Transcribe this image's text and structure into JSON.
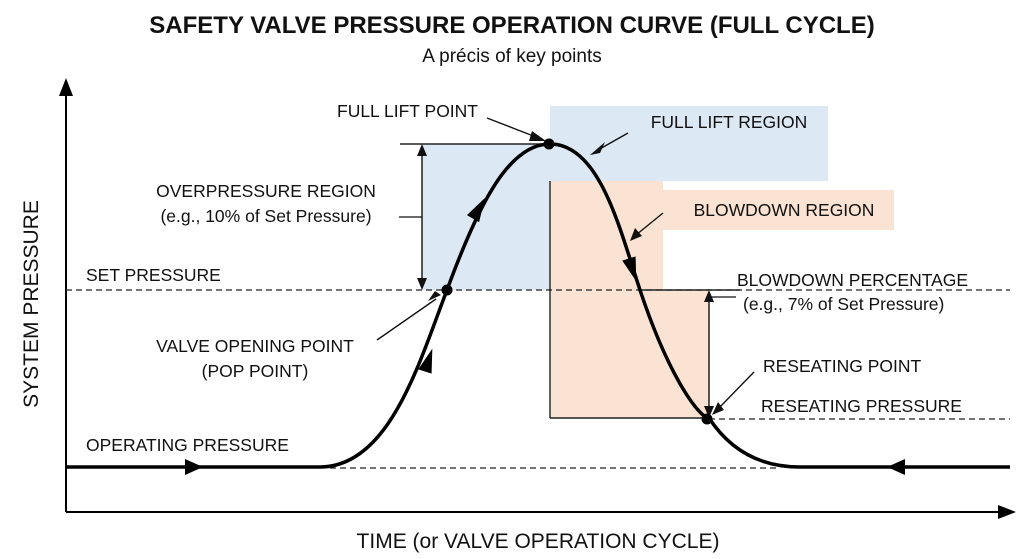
{
  "title": "SAFETY VALVE PRESSURE OPERATION CURVE (FULL CYCLE)",
  "subtitle": "A précis of key points",
  "axes": {
    "x_label": "TIME (or VALVE OPERATION CYCLE)",
    "y_label": "SYSTEM PRESSURE"
  },
  "labels": {
    "full_lift_point": "FULL LIFT POINT",
    "full_lift_region": "FULL LIFT REGION",
    "overpressure_region_1": "OVERPRESSURE REGION",
    "overpressure_region_2": "(e.g., 10% of Set Pressure)",
    "blowdown_region": "BLOWDOWN REGION",
    "set_pressure": "SET PRESSURE",
    "blowdown_percentage_1": "BLOWDOWN PERCENTAGE",
    "blowdown_percentage_2": "(e.g., 7% of Set Pressure)",
    "valve_opening_point_1": "VALVE OPENING POINT",
    "valve_opening_point_2": "(POP POINT)",
    "reseating_point": "RESEATING POINT",
    "reseating_pressure": "RESEATING PRESSURE",
    "operating_pressure": "OPERATING PRESSURE"
  },
  "colors": {
    "full_lift_fill": "#dce8f4",
    "blowdown_fill": "#fbe3d3",
    "curve": "#000000"
  }
}
